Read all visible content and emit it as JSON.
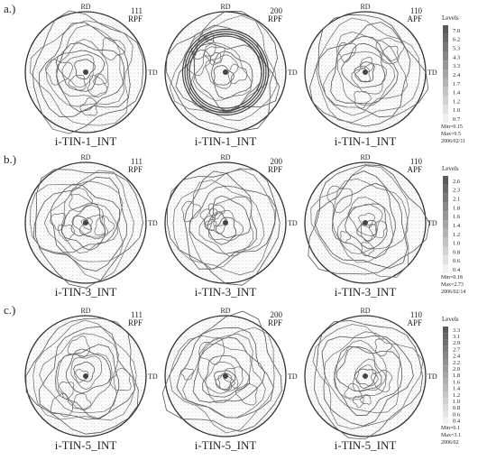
{
  "rows": [
    {
      "label": "a.)",
      "panels": [
        {
          "rd": "RD",
          "td": "TD",
          "plane": "111",
          "kind": "RPF",
          "caption": "i-TIN-1_INT"
        },
        {
          "rd": "RD",
          "td": "TD",
          "plane": "200",
          "kind": "RPF",
          "caption": "i-TIN-1_INT"
        },
        {
          "rd": "RD",
          "td": "TD",
          "plane": "110",
          "kind": "APF",
          "caption": "i-TIN-1_INT"
        }
      ],
      "legend": {
        "title": "Levels",
        "levels": [
          "7.0",
          "6.2",
          "5.3",
          "4.3",
          "3.3",
          "2.4",
          "1.7",
          "1.4",
          "1.2",
          "1.0",
          "0.7"
        ],
        "footer": [
          "Min=0.15",
          "Max=9.5",
          "2006/02/11"
        ]
      }
    },
    {
      "label": "b.)",
      "panels": [
        {
          "rd": "RD",
          "td": "TD",
          "plane": "111",
          "kind": "RPF",
          "caption": "i-TIN-3_INT"
        },
        {
          "rd": "RD",
          "td": "TD",
          "plane": "200",
          "kind": "RPF",
          "caption": "i-TIN-3_INT"
        },
        {
          "rd": "RD",
          "td": "TD",
          "plane": "110",
          "kind": "APF",
          "caption": "i-TIN-3_INT"
        }
      ],
      "legend": {
        "title": "Levels",
        "levels": [
          "2.6",
          "2.3",
          "2.1",
          "1.8",
          "1.6",
          "1.4",
          "1.2",
          "1.0",
          "0.8",
          "0.6",
          "0.4"
        ],
        "footer": [
          "Min=0.18",
          "Max=2.73",
          "2006/02/14"
        ]
      }
    },
    {
      "label": "c.)",
      "panels": [
        {
          "rd": "RD",
          "td": "TD",
          "plane": "111",
          "kind": "RPF",
          "caption": "i-TIN-5_INT"
        },
        {
          "rd": "RD",
          "td": "TD",
          "plane": "200",
          "kind": "RPF",
          "caption": "i-TIN-5_INT"
        },
        {
          "rd": "RD",
          "td": "TD",
          "plane": "110",
          "kind": "APF",
          "caption": "i-TIN-5_INT"
        }
      ],
      "legend": {
        "title": "Levels",
        "levels": [
          "3.3",
          "3.1",
          "2.9",
          "2.7",
          "2.4",
          "2.2",
          "2.0",
          "1.8",
          "1.6",
          "1.4",
          "1.2",
          "1.0",
          "0.8",
          "0.6",
          "0.4"
        ],
        "footer": [
          "Min=0.1",
          "Max=3.1",
          "2006/02"
        ]
      }
    }
  ]
}
